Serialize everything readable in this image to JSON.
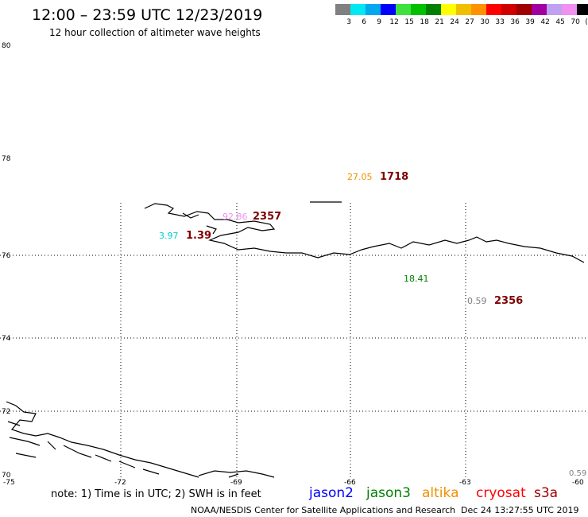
{
  "header": {
    "title": "12:00 – 23:59 UTC 12/23/2019",
    "subtitle": "12 hour collection of altimeter wave heights"
  },
  "legend": {
    "colors": [
      "#808080",
      "#00e8f0",
      "#00a8f0",
      "#0000ff",
      "#40e040",
      "#00c000",
      "#008000",
      "#ffff00",
      "#f0c000",
      "#ff9000",
      "#ff0000",
      "#d00000",
      "#a00000",
      "#a000a0",
      "#c0a0f0",
      "#f090f0",
      "#000000"
    ],
    "labels": [
      "3",
      "6",
      "9",
      "12",
      "15",
      "18",
      "21",
      "24",
      "27",
      "30",
      "33",
      "36",
      "39",
      "42",
      "45",
      "70",
      "(ft)"
    ]
  },
  "axes": {
    "lat_labels": [
      "80",
      "78",
      "76",
      "74",
      "72",
      "70"
    ],
    "lon_labels": [
      "-75",
      "-72",
      "-69",
      "-66",
      "-63",
      "-60"
    ]
  },
  "observations": {
    "p1": {
      "value": "27.05",
      "color": "#f09000"
    },
    "p2": {
      "value": "1718",
      "color": "#800000"
    },
    "p3": {
      "value": "92.86",
      "color": "#f090f0"
    },
    "p4": {
      "value": "2357",
      "color": "#800000"
    },
    "p5": {
      "value": "3.97",
      "color": "#00d0d0"
    },
    "p6": {
      "value": "1.39",
      "color": "#800000"
    },
    "p7": {
      "value": "18.41",
      "color": "#008000"
    },
    "p8": {
      "value": "0.59",
      "color": "#808080"
    },
    "p9": {
      "value": "2356",
      "color": "#800000"
    },
    "p10": {
      "value": "0.59",
      "color": "#808080"
    }
  },
  "footer": {
    "note": "note: 1) Time is in UTC; 2) SWH is in feet",
    "satellites": [
      {
        "name": "jason2",
        "color": "#0000ff"
      },
      {
        "name": "jason3",
        "color": "#008000"
      },
      {
        "name": "altika",
        "color": "#f09000"
      },
      {
        "name": "cryosat",
        "color": "#ff0000"
      },
      {
        "name": "s3a",
        "color": "#a00000"
      }
    ],
    "credit": "NOAA/NESDIS Center for Satellite Applications and Research",
    "timestamp": "Dec 24 13:27:55 UTC 2019"
  }
}
